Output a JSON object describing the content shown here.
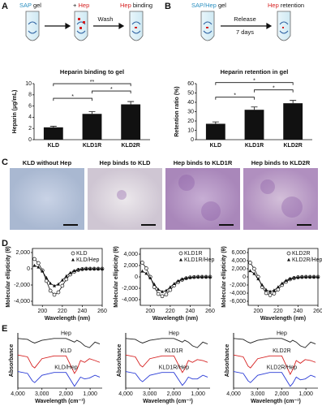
{
  "figure": {
    "panel_labels": [
      "A",
      "B",
      "C",
      "D",
      "E"
    ],
    "schematic_a": {
      "sap": "SAP",
      "gel": "gel",
      "plus": "+",
      "hep": "Hep",
      "hep_binding": "Hep",
      "binding": "binding",
      "wash": "Wash"
    },
    "schematic_b": {
      "sap_hep": "SAP/Hep",
      "gel": "gel",
      "release": "Release",
      "days": "7 days",
      "hep": "Hep",
      "retention": "retention"
    },
    "panel_c": [
      "KLD without Hep",
      "Hep binds to KLD",
      "Hep binds to KLD1R",
      "Hep binds to KLD2R"
    ]
  },
  "chart_data": [
    {
      "type": "bar",
      "title": "Heparin binding to gel",
      "ylabel": "Heparin (μg/mL)",
      "categories": [
        "KLD",
        "KLD1R",
        "KLD2R"
      ],
      "values": [
        2.2,
        4.6,
        6.3
      ],
      "errors": [
        0.2,
        0.4,
        0.5
      ],
      "color": "#111111",
      "ylim": [
        0,
        10
      ],
      "yticks": [
        0,
        2,
        4,
        6,
        8,
        10
      ],
      "annotations": [
        "*",
        "**",
        "*"
      ]
    },
    {
      "type": "bar",
      "title": "Heparin retention in gel",
      "ylabel": "Retention ratio (%)",
      "categories": [
        "KLD",
        "KLD1R",
        "KLD2R"
      ],
      "values": [
        17,
        32,
        39
      ],
      "errors": [
        2,
        3,
        3
      ],
      "color": "#111111",
      "ylim": [
        0,
        60
      ],
      "yticks": [
        0,
        10,
        20,
        30,
        40,
        50,
        60
      ],
      "annotations": [
        "*",
        "*",
        "*"
      ]
    },
    {
      "type": "line",
      "xlabel": "Wavelength (nm)",
      "ylabel": "Molecular ellipticity (θ)",
      "x": [
        192,
        196,
        200,
        204,
        208,
        212,
        216,
        220,
        224,
        228,
        232,
        236,
        240,
        244,
        248,
        252,
        256,
        260
      ],
      "xlim": [
        190,
        260
      ],
      "xticks": [
        200,
        220,
        240,
        260
      ],
      "ylim": [
        -4500,
        2500
      ],
      "yticks": [
        {
          "value": 2000,
          "label": "2,000"
        },
        0,
        {
          "value": -2000,
          "label": "-2,000"
        },
        {
          "value": -4000,
          "label": "-4,000"
        }
      ],
      "legend": "upper right",
      "series": [
        {
          "name": "KLD",
          "color": "#111111",
          "marker": "circle-open",
          "values": [
            1200,
            700,
            -200,
            -1500,
            -2700,
            -3200,
            -2900,
            -2100,
            -1300,
            -700,
            -350,
            -150,
            -50,
            0,
            0,
            0,
            0,
            0
          ]
        },
        {
          "name": "KLD/Hep",
          "color": "#111111",
          "marker": "triangle",
          "values": [
            400,
            200,
            -300,
            -1100,
            -1800,
            -2100,
            -1900,
            -1400,
            -900,
            -500,
            -250,
            -100,
            -30,
            0,
            0,
            0,
            0,
            0
          ]
        }
      ]
    },
    {
      "type": "line",
      "xlabel": "Wavelength (nm)",
      "ylabel": "Molecular ellipticity (θ)",
      "x": [
        192,
        196,
        200,
        204,
        208,
        212,
        216,
        220,
        224,
        228,
        232,
        236,
        240,
        244,
        248,
        252,
        256,
        260
      ],
      "xlim": [
        190,
        260
      ],
      "xticks": [
        200,
        220,
        240,
        260
      ],
      "ylim": [
        -5000,
        5000
      ],
      "yticks": [
        {
          "value": 4000,
          "label": "4,000"
        },
        {
          "value": 2000,
          "label": "2,000"
        },
        0,
        {
          "value": -2000,
          "label": "-2,000"
        },
        {
          "value": -4000,
          "label": "-4,000"
        }
      ],
      "legend": "upper right",
      "series": [
        {
          "name": "KLD1R",
          "color": "#111111",
          "marker": "circle-open",
          "values": [
            2500,
            1500,
            0,
            -1800,
            -3000,
            -3400,
            -3100,
            -2300,
            -1500,
            -900,
            -500,
            -250,
            -100,
            -30,
            0,
            0,
            0,
            0
          ]
        },
        {
          "name": "KLD1R/Hep",
          "color": "#111111",
          "marker": "triangle",
          "values": [
            1000,
            600,
            -200,
            -1300,
            -2200,
            -2600,
            -2400,
            -1800,
            -1200,
            -700,
            -400,
            -200,
            -80,
            -20,
            0,
            0,
            0,
            0
          ]
        }
      ]
    },
    {
      "type": "line",
      "xlabel": "Wavelength (nm)",
      "ylabel": "Molecular ellipticity (θ)",
      "x": [
        192,
        196,
        200,
        204,
        208,
        212,
        216,
        220,
        224,
        228,
        232,
        236,
        240,
        244,
        248,
        252,
        256,
        260
      ],
      "xlim": [
        190,
        260
      ],
      "xticks": [
        200,
        220,
        240,
        260
      ],
      "ylim": [
        -7000,
        7000
      ],
      "yticks": [
        {
          "value": 6000,
          "label": "6,000"
        },
        {
          "value": 4000,
          "label": "4,000"
        },
        {
          "value": 2000,
          "label": "2,000"
        },
        0,
        {
          "value": -2000,
          "label": "-2,000"
        },
        {
          "value": -4000,
          "label": "-4,000"
        },
        {
          "value": -6000,
          "label": "-6,000"
        }
      ],
      "legend": "upper right",
      "series": [
        {
          "name": "KLD2R",
          "color": "#111111",
          "marker": "circle-open",
          "values": [
            3500,
            2000,
            0,
            -2500,
            -4000,
            -4500,
            -4100,
            -3100,
            -2000,
            -1200,
            -600,
            -300,
            -100,
            -30,
            0,
            0,
            0,
            0
          ]
        },
        {
          "name": "KLD2R/Hep",
          "color": "#111111",
          "marker": "triangle",
          "values": [
            1500,
            800,
            -500,
            -2000,
            -3200,
            -3600,
            -3300,
            -2500,
            -1600,
            -900,
            -450,
            -200,
            -80,
            -20,
            0,
            0,
            0,
            0
          ]
        }
      ]
    },
    {
      "type": "line",
      "xlabel": "Wavelength (cm⁻¹)",
      "ylabel": "Absorbance",
      "x": [
        4000,
        3600,
        3400,
        3300,
        3000,
        2500,
        2000,
        1650,
        1550,
        1400,
        1230,
        1030,
        800,
        600
      ],
      "xlim": [
        4000,
        500
      ],
      "xticks": [
        {
          "value": 4000,
          "label": "4,000"
        },
        {
          "value": 3000,
          "label": "3,000"
        },
        {
          "value": 2000,
          "label": "2,000"
        },
        {
          "value": 1000,
          "label": "1,000"
        }
      ],
      "ylim": [
        0,
        3
      ],
      "legend": "inline",
      "series": [
        {
          "name": "Hep",
          "color": "#222222",
          "values": [
            2.7,
            2.65,
            2.5,
            2.45,
            2.6,
            2.7,
            2.7,
            2.5,
            2.6,
            2.5,
            2.3,
            2.2,
            2.5,
            2.4
          ]
        },
        {
          "name": "KLD",
          "color": "#d62020",
          "values": [
            1.8,
            1.7,
            1.2,
            1.1,
            1.6,
            1.75,
            1.75,
            0.8,
            1.0,
            1.5,
            1.4,
            1.6,
            1.5,
            1.4
          ]
        },
        {
          "name": "KLD/Hep",
          "color": "#2a3bd6",
          "values": [
            0.9,
            0.8,
            0.4,
            0.3,
            0.7,
            0.85,
            0.85,
            0.1,
            0.3,
            0.6,
            0.5,
            0.55,
            0.7,
            0.6
          ]
        }
      ]
    },
    {
      "type": "line",
      "xlabel": "Wavelength (cm⁻¹)",
      "ylabel": "Absorbance",
      "x": [
        4000,
        3600,
        3400,
        3300,
        3000,
        2500,
        2000,
        1650,
        1550,
        1400,
        1230,
        1030,
        800,
        600
      ],
      "xlim": [
        4000,
        500
      ],
      "xticks": [
        {
          "value": 4000,
          "label": "4,000"
        },
        {
          "value": 3000,
          "label": "3,000"
        },
        {
          "value": 2000,
          "label": "2,000"
        },
        {
          "value": 1000,
          "label": "1,000"
        }
      ],
      "ylim": [
        0,
        3
      ],
      "legend": "inline",
      "series": [
        {
          "name": "Hep",
          "color": "#222222",
          "values": [
            2.7,
            2.65,
            2.5,
            2.45,
            2.6,
            2.7,
            2.7,
            2.5,
            2.6,
            2.5,
            2.3,
            2.2,
            2.5,
            2.4
          ]
        },
        {
          "name": "KLD1R",
          "color": "#d62020",
          "values": [
            1.8,
            1.7,
            1.25,
            1.15,
            1.6,
            1.75,
            1.75,
            0.85,
            1.05,
            1.5,
            1.4,
            1.55,
            1.5,
            1.4
          ]
        },
        {
          "name": "KLD1R/Hep",
          "color": "#2a3bd6",
          "values": [
            0.9,
            0.8,
            0.45,
            0.35,
            0.7,
            0.85,
            0.85,
            0.15,
            0.3,
            0.6,
            0.5,
            0.5,
            0.7,
            0.6
          ]
        }
      ]
    },
    {
      "type": "line",
      "xlabel": "Wavelength (cm⁻¹)",
      "ylabel": "Absorbance",
      "x": [
        4000,
        3600,
        3400,
        3300,
        3000,
        2500,
        2000,
        1650,
        1550,
        1400,
        1230,
        1030,
        800,
        600
      ],
      "xlim": [
        4000,
        500
      ],
      "xticks": [
        {
          "value": 4000,
          "label": "4,000"
        },
        {
          "value": 3000,
          "label": "3,000"
        },
        {
          "value": 2000,
          "label": "2,000"
        },
        {
          "value": 1000,
          "label": "1,000"
        }
      ],
      "ylim": [
        0,
        3
      ],
      "legend": "inline",
      "series": [
        {
          "name": "Hep",
          "color": "#222222",
          "values": [
            2.7,
            2.65,
            2.5,
            2.45,
            2.6,
            2.7,
            2.7,
            2.5,
            2.6,
            2.5,
            2.3,
            2.2,
            2.5,
            2.4
          ]
        },
        {
          "name": "KLD2R",
          "color": "#d62020",
          "values": [
            1.8,
            1.7,
            1.2,
            1.1,
            1.6,
            1.75,
            1.75,
            0.75,
            1.0,
            1.5,
            1.35,
            1.55,
            1.5,
            1.4
          ]
        },
        {
          "name": "KLD2R/Hep",
          "color": "#2a3bd6",
          "values": [
            0.9,
            0.8,
            0.4,
            0.3,
            0.7,
            0.85,
            0.85,
            0.1,
            0.25,
            0.6,
            0.45,
            0.5,
            0.7,
            0.6
          ]
        }
      ]
    }
  ]
}
